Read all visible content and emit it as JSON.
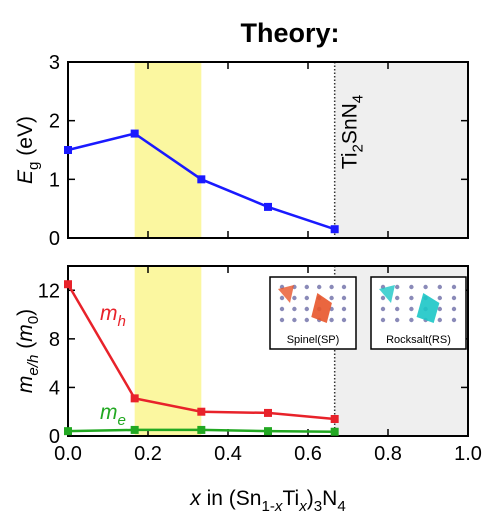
{
  "chart_data": [
    {
      "type": "line",
      "title": "Theory:",
      "ylabel": [
        {
          "italic": "E"
        },
        {
          "sub": "g"
        },
        {
          "text": " (eV)"
        }
      ],
      "x": [
        0,
        0.1667,
        0.3333,
        0.5,
        0.6667
      ],
      "series": [
        {
          "color": "#1a1aff",
          "values": [
            1.5,
            1.78,
            1.0,
            0.53,
            0.15
          ]
        }
      ],
      "xlim": [
        0,
        1
      ],
      "xticks": [
        0,
        0.2,
        0.4,
        0.6,
        0.8,
        1
      ],
      "ylim": [
        0,
        3
      ],
      "yticks": [
        0,
        1,
        2,
        3
      ],
      "highlight": [
        0.1667,
        0.3333
      ],
      "shade": [
        0.6667,
        1
      ],
      "annotation": [
        {
          "text": "Ti"
        },
        {
          "sub": "2"
        },
        {
          "text": "SnN"
        },
        {
          "sub": "4"
        }
      ]
    },
    {
      "type": "line",
      "xlabel": [
        {
          "italic": "x"
        },
        {
          "text": " in (Sn"
        },
        {
          "sub": "1-"
        },
        {
          "isub": "x"
        },
        {
          "text": "Ti"
        },
        {
          "isub": "x"
        },
        {
          "text": ")"
        },
        {
          "sub": "3"
        },
        {
          "text": "N"
        },
        {
          "sub": "4"
        }
      ],
      "ylabel": [
        {
          "italic": "m"
        },
        {
          "isub": "e/h"
        },
        {
          "text": " ("
        },
        {
          "italic": "m"
        },
        {
          "sub": "0"
        },
        {
          "text": ")"
        }
      ],
      "x": [
        0,
        0.1667,
        0.3333,
        0.5,
        0.6667
      ],
      "series": [
        {
          "name": [
            {
              "italic": "m"
            },
            {
              "isub": "h"
            }
          ],
          "color": "#e8222a",
          "values": [
            12.5,
            3.1,
            2.0,
            1.9,
            1.4
          ]
        },
        {
          "name": [
            {
              "italic": "m"
            },
            {
              "isub": "e"
            }
          ],
          "color": "#22a822",
          "values": [
            0.4,
            0.5,
            0.5,
            0.4,
            0.35
          ]
        }
      ],
      "xlim": [
        0,
        1
      ],
      "xticks": [
        {
          "value": 0,
          "label": "0.0"
        },
        {
          "value": 0.2,
          "label": "0.2"
        },
        {
          "value": 0.4,
          "label": "0.4"
        },
        {
          "value": 0.6,
          "label": "0.6"
        },
        {
          "value": 0.8,
          "label": "0.8"
        },
        {
          "value": 1,
          "label": "1.0"
        }
      ],
      "ylim": [
        0,
        14
      ],
      "yticks": [
        0,
        4,
        8,
        12
      ],
      "highlight": [
        0.1667,
        0.3333
      ],
      "shade": [
        0.6667,
        1
      ],
      "insets": [
        "Spinel(SP)",
        "Rocksalt(RS)"
      ]
    }
  ]
}
